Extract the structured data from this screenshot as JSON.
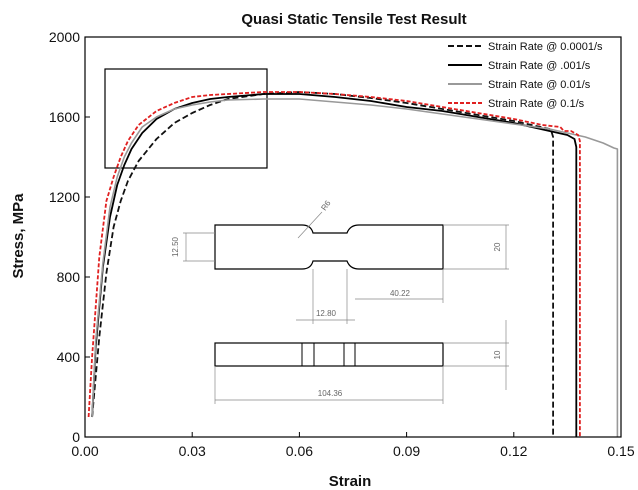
{
  "chart_data": {
    "type": "line",
    "title": "Quasi Static Tensile Test Result",
    "xlabel": "Strain",
    "ylabel": "Stress, MPa",
    "xlim": [
      0,
      0.15
    ],
    "ylim": [
      0,
      2000
    ],
    "xticks": [
      "0.00",
      "0.03",
      "0.06",
      "0.09",
      "0.12",
      "0.15"
    ],
    "yticks": [
      "0",
      "400",
      "800",
      "1200",
      "1600",
      "2000"
    ],
    "grid": false,
    "legend_position": "top-right",
    "series": [
      {
        "name": "Strain Rate @ 0.0001/s",
        "color": "#111111",
        "style": "dashed",
        "x": [
          0.002,
          0.004,
          0.006,
          0.008,
          0.01,
          0.012,
          0.015,
          0.02,
          0.025,
          0.03,
          0.035,
          0.04,
          0.05,
          0.06,
          0.07,
          0.08,
          0.09,
          0.1,
          0.11,
          0.12,
          0.125,
          0.13,
          0.1305,
          0.131,
          0.131
        ],
        "y": [
          100,
          500,
          820,
          1050,
          1180,
          1280,
          1380,
          1490,
          1570,
          1620,
          1660,
          1690,
          1715,
          1725,
          1715,
          1695,
          1670,
          1640,
          1610,
          1580,
          1560,
          1540,
          1530,
          1500,
          0
        ]
      },
      {
        "name": "Strain Rate @ .001/s",
        "color": "#000000",
        "style": "solid",
        "x": [
          0.002,
          0.003,
          0.005,
          0.007,
          0.009,
          0.011,
          0.013,
          0.016,
          0.02,
          0.025,
          0.03,
          0.035,
          0.04,
          0.05,
          0.06,
          0.07,
          0.08,
          0.09,
          0.1,
          0.11,
          0.12,
          0.13,
          0.135,
          0.137,
          0.1375,
          0.1375
        ],
        "y": [
          100,
          450,
          850,
          1100,
          1260,
          1360,
          1440,
          1520,
          1590,
          1640,
          1670,
          1690,
          1700,
          1715,
          1715,
          1700,
          1680,
          1650,
          1630,
          1600,
          1570,
          1530,
          1510,
          1490,
          1450,
          0
        ]
      },
      {
        "name": "Strain Rate @ 0.01/s",
        "color": "#999999",
        "style": "solid",
        "x": [
          0.002,
          0.003,
          0.005,
          0.007,
          0.009,
          0.011,
          0.013,
          0.016,
          0.02,
          0.025,
          0.03,
          0.035,
          0.04,
          0.05,
          0.06,
          0.07,
          0.08,
          0.09,
          0.1,
          0.11,
          0.12,
          0.13,
          0.135,
          0.14,
          0.145,
          0.148,
          0.149,
          0.149
        ],
        "y": [
          100,
          480,
          870,
          1150,
          1300,
          1400,
          1470,
          1550,
          1600,
          1640,
          1660,
          1675,
          1685,
          1690,
          1690,
          1675,
          1660,
          1640,
          1615,
          1590,
          1565,
          1540,
          1520,
          1500,
          1470,
          1445,
          1440,
          0
        ]
      },
      {
        "name": "Strain Rate @ 0.1/s",
        "color": "#e02020",
        "style": "dashed",
        "x": [
          0.001,
          0.002,
          0.004,
          0.006,
          0.008,
          0.01,
          0.012,
          0.015,
          0.02,
          0.025,
          0.03,
          0.035,
          0.04,
          0.05,
          0.06,
          0.07,
          0.08,
          0.09,
          0.1,
          0.11,
          0.12,
          0.128,
          0.133,
          0.134,
          0.136,
          0.138,
          0.1385,
          0.1385
        ],
        "y": [
          100,
          400,
          900,
          1180,
          1300,
          1400,
          1480,
          1560,
          1630,
          1670,
          1700,
          1710,
          1715,
          1725,
          1725,
          1715,
          1700,
          1680,
          1650,
          1620,
          1590,
          1560,
          1550,
          1530,
          1530,
          1510,
          1480,
          0
        ]
      }
    ],
    "annotations": {
      "inset_dimensions": [
        "R6",
        "12.50",
        "20",
        "12.80",
        "40.22",
        "10",
        "104.36"
      ]
    }
  }
}
